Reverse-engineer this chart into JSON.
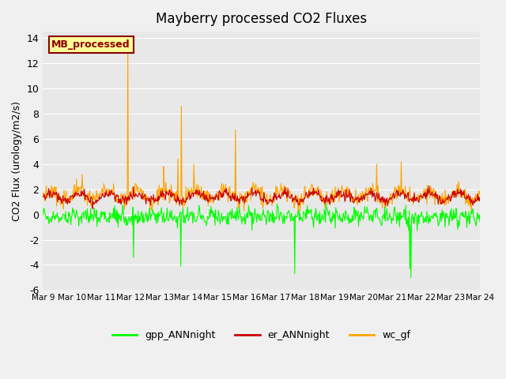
{
  "title": "Mayberry processed CO2 Fluxes",
  "ylabel": "CO2 Flux (urology/m2/s)",
  "ylim": [
    -6,
    14.5
  ],
  "yticks": [
    -6,
    -4,
    -2,
    0,
    2,
    4,
    6,
    8,
    10,
    12,
    14
  ],
  "bg_color": "#e8e8e8",
  "fig_bg": "#f0f0f0",
  "legend_label": "MB_processed",
  "legend_box_color": "#ffff99",
  "legend_box_edge": "#8b0000",
  "legend_text_color": "#8b0000",
  "line_colors": {
    "gpp_ANNnight": "#00ff00",
    "er_ANNnight": "#cc0000",
    "wc_gf": "#ffa500"
  },
  "xtick_labels": [
    "Mar 9",
    "Mar 10",
    "Mar 11",
    "Mar 12",
    "Mar 13",
    "Mar 14",
    "Mar 15",
    "Mar 16",
    "Mar 17",
    "Mar 18",
    "Mar 19",
    "Mar 20",
    "Mar 21",
    "Mar 22",
    "Mar 23",
    "Mar 24"
  ],
  "num_days": 15,
  "points_per_day": 48,
  "seed": 42,
  "start_day": 9
}
